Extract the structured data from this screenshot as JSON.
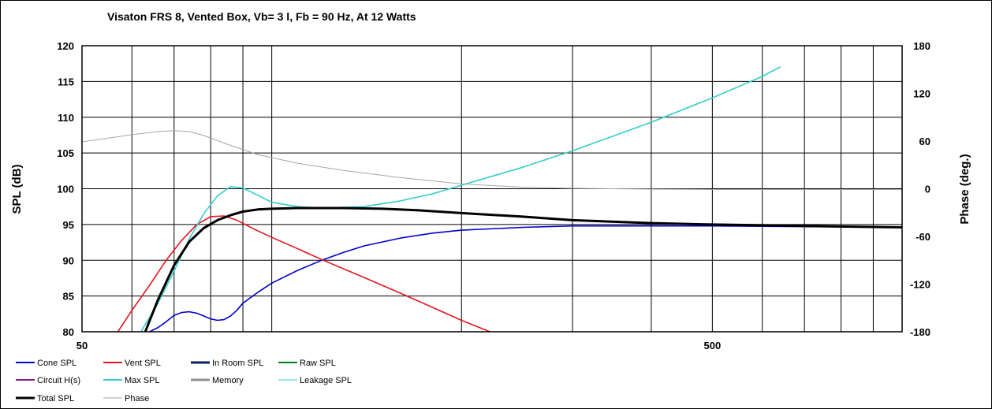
{
  "chart_data": {
    "type": "line",
    "title": "Visaton FRS 8,  Vented Box, Vb= 3 l,  Fb = 90 Hz,  At 12 Watts",
    "xlabel": "",
    "ylabel": "SPL (dB)",
    "y2label": "Phase (deg.)",
    "xscale": "log",
    "xlim": [
      50,
      1000
    ],
    "ylim": [
      80,
      120
    ],
    "y2lim": [
      -180,
      180
    ],
    "grid": true,
    "legend_position": "bottom",
    "x_ticks": [
      {
        "value": 50,
        "label": "50"
      },
      {
        "value": 500,
        "label": "500"
      }
    ],
    "y_ticks": [
      {
        "value": 120,
        "label": "120"
      },
      {
        "value": 115,
        "label": "115"
      },
      {
        "value": 110,
        "label": "110"
      },
      {
        "value": 105,
        "label": "105"
      },
      {
        "value": 100,
        "label": "100"
      },
      {
        "value": 95,
        "label": "95"
      },
      {
        "value": 90,
        "label": "90"
      },
      {
        "value": 85,
        "label": "85"
      },
      {
        "value": 80,
        "label": "80"
      }
    ],
    "y2_ticks": [
      {
        "value": 180,
        "label": "180"
      },
      {
        "value": 120,
        "label": "120"
      },
      {
        "value": 60,
        "label": "60"
      },
      {
        "value": 0,
        "label": "0"
      },
      {
        "value": -60,
        "label": "-60"
      },
      {
        "value": -120,
        "label": "-120"
      },
      {
        "value": -180,
        "label": "-180"
      }
    ],
    "legend": [
      {
        "label": "Cone SPL",
        "color": "#0000cc"
      },
      {
        "label": "Vent SPL",
        "color": "#e8141e"
      },
      {
        "label": "In Room SPL",
        "color": "#002060"
      },
      {
        "label": "Raw SPL",
        "color": "#007a1a"
      },
      {
        "label": "Circuit H(s)",
        "color": "#7b1f7e"
      },
      {
        "label": "Max SPL",
        "color": "#33cccc"
      },
      {
        "label": "Memory",
        "color": "#909090"
      },
      {
        "label": "Leakage SPL",
        "color": "#33cccc"
      },
      {
        "label": "Total SPL",
        "color": "#000000"
      },
      {
        "label": "Phase",
        "color": "#a6a6a6"
      }
    ],
    "series": [
      {
        "name": "Cone SPL",
        "color": "#0000cc",
        "width": 1.6,
        "axis": "left",
        "points": [
          [
            64,
            80
          ],
          [
            66,
            80.6
          ],
          [
            68,
            81.4
          ],
          [
            70,
            82.3
          ],
          [
            72,
            82.7
          ],
          [
            74,
            82.8
          ],
          [
            76,
            82.6
          ],
          [
            78,
            82.2
          ],
          [
            80,
            81.8
          ],
          [
            82,
            81.6
          ],
          [
            84,
            81.7
          ],
          [
            86,
            82.2
          ],
          [
            88,
            83
          ],
          [
            90,
            84
          ],
          [
            95,
            85.5
          ],
          [
            100,
            86.8
          ],
          [
            110,
            88.6
          ],
          [
            120,
            90
          ],
          [
            130,
            91.1
          ],
          [
            140,
            92
          ],
          [
            160,
            93.1
          ],
          [
            180,
            93.8
          ],
          [
            200,
            94.2
          ],
          [
            250,
            94.6
          ],
          [
            300,
            94.8
          ],
          [
            400,
            94.8
          ],
          [
            500,
            94.8
          ],
          [
            700,
            94.7
          ],
          [
            1000,
            94.6
          ]
        ]
      },
      {
        "name": "Vent SPL",
        "color": "#e8141e",
        "width": 1.6,
        "axis": "left",
        "points": [
          [
            57,
            80
          ],
          [
            60,
            83
          ],
          [
            64,
            86.5
          ],
          [
            68,
            90
          ],
          [
            72,
            92.8
          ],
          [
            76,
            95
          ],
          [
            80,
            96.1
          ],
          [
            84,
            96.2
          ],
          [
            88,
            95.6
          ],
          [
            94,
            94.3
          ],
          [
            100,
            93.2
          ],
          [
            110,
            91.6
          ],
          [
            120,
            90.1
          ],
          [
            140,
            87.6
          ],
          [
            160,
            85.4
          ],
          [
            180,
            83.4
          ],
          [
            200,
            81.6
          ],
          [
            222,
            80
          ]
        ]
      },
      {
        "name": "Max SPL",
        "color": "#33cccc",
        "width": 1.6,
        "axis": "left",
        "points": [
          [
            62,
            80
          ],
          [
            66,
            84
          ],
          [
            70,
            88.5
          ],
          [
            74,
            93
          ],
          [
            78,
            96.5
          ],
          [
            82,
            99
          ],
          [
            86,
            100.3
          ],
          [
            90,
            100.1
          ],
          [
            95,
            99.1
          ],
          [
            100,
            98.1
          ],
          [
            110,
            97.5
          ],
          [
            120,
            97.3
          ],
          [
            140,
            97.5
          ],
          [
            160,
            98.3
          ],
          [
            180,
            99.3
          ],
          [
            200,
            100.5
          ],
          [
            250,
            103
          ],
          [
            300,
            105.3
          ],
          [
            400,
            109.3
          ],
          [
            500,
            112.7
          ],
          [
            600,
            115.7
          ],
          [
            640,
            117
          ]
        ]
      },
      {
        "name": "Phase",
        "color": "#a6a6a6",
        "width": 1,
        "axis": "right",
        "points": [
          [
            50,
            59
          ],
          [
            60,
            68
          ],
          [
            66,
            72
          ],
          [
            70,
            73
          ],
          [
            74,
            72
          ],
          [
            78,
            67
          ],
          [
            85,
            56
          ],
          [
            95,
            43
          ],
          [
            110,
            32
          ],
          [
            130,
            23
          ],
          [
            160,
            14
          ],
          [
            200,
            6
          ],
          [
            250,
            2
          ],
          [
            300,
            0.5
          ],
          [
            400,
            -0.5
          ],
          [
            500,
            -1
          ],
          [
            1000,
            -1
          ]
        ]
      },
      {
        "name": "Total SPL",
        "color": "#000000",
        "width": 3,
        "axis": "left",
        "points": [
          [
            63,
            80
          ],
          [
            66,
            84.5
          ],
          [
            70,
            89.3
          ],
          [
            74,
            92.6
          ],
          [
            78,
            94.5
          ],
          [
            82,
            95.6
          ],
          [
            86,
            96.3
          ],
          [
            90,
            96.8
          ],
          [
            95,
            97.1
          ],
          [
            100,
            97.2
          ],
          [
            110,
            97.3
          ],
          [
            130,
            97.3
          ],
          [
            150,
            97.2
          ],
          [
            170,
            97
          ],
          [
            200,
            96.6
          ],
          [
            250,
            96.1
          ],
          [
            300,
            95.6
          ],
          [
            400,
            95.2
          ],
          [
            500,
            95
          ],
          [
            700,
            94.8
          ],
          [
            1000,
            94.6
          ]
        ]
      }
    ]
  }
}
